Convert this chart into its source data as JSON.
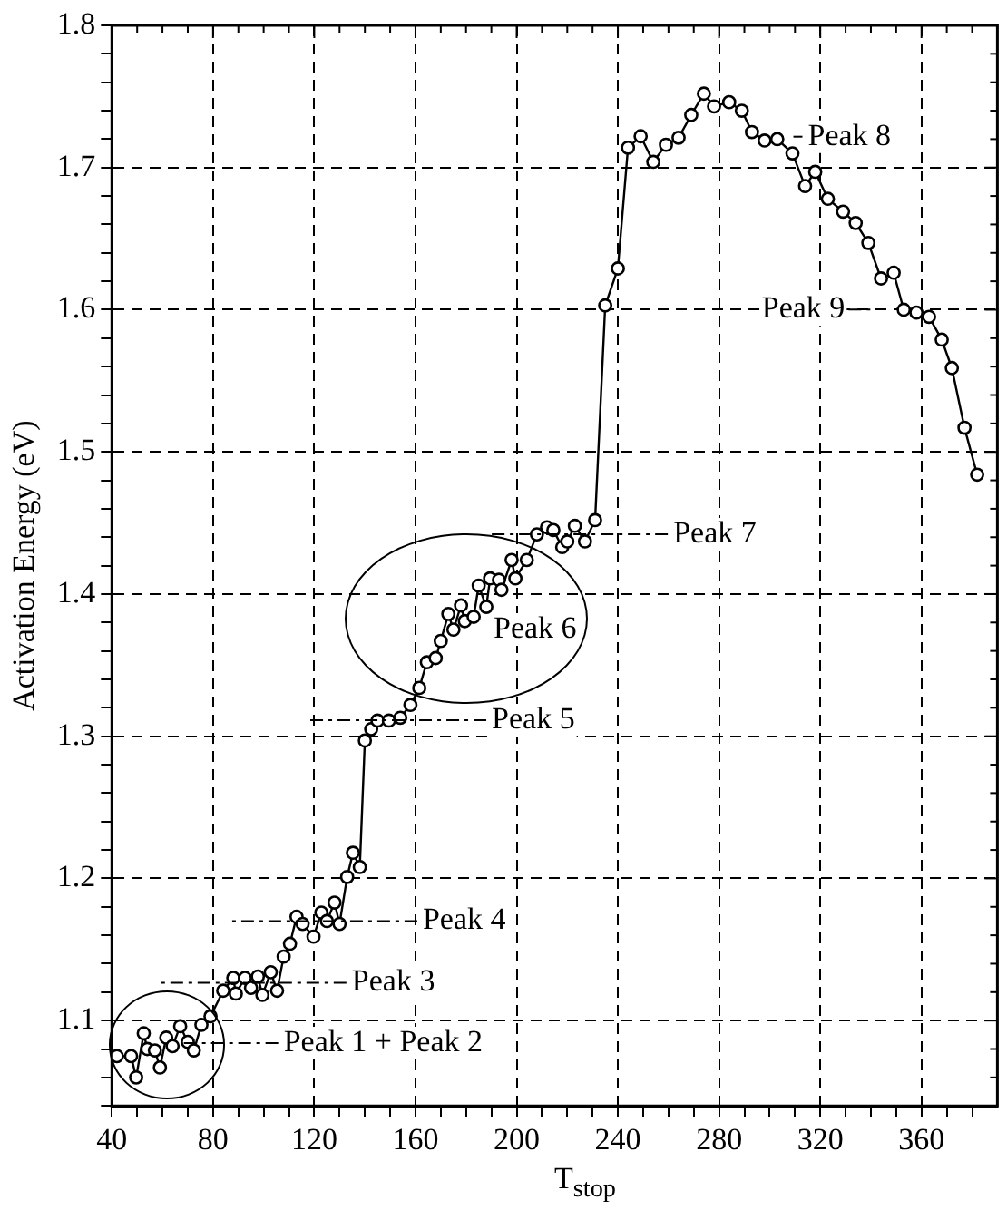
{
  "chart_data": {
    "type": "line",
    "xlabel": "T$_{stop}$",
    "ylabel": "Activation Energy (eV)",
    "color": "#000000",
    "marker": "circle",
    "line_style": "solid",
    "grid": true,
    "legend": false,
    "xlim": [
      40,
      390
    ],
    "ylim": [
      1.04,
      1.8
    ],
    "xticks": [
      40,
      {
        "value": 50,
        "label": null
      },
      {
        "value": 60,
        "label": null
      },
      {
        "value": 70,
        "label": null
      },
      80,
      {
        "value": 90,
        "label": null
      },
      {
        "value": 100,
        "label": null
      },
      {
        "value": 110,
        "label": null
      },
      120,
      {
        "value": 130,
        "label": null
      },
      {
        "value": 140,
        "label": null
      },
      {
        "value": 150,
        "label": null
      },
      160,
      {
        "value": 170,
        "label": null
      },
      {
        "value": 180,
        "label": null
      },
      {
        "value": 190,
        "label": null
      },
      200,
      {
        "value": 210,
        "label": null
      },
      {
        "value": 220,
        "label": null
      },
      {
        "value": 230,
        "label": null
      },
      240,
      {
        "value": 250,
        "label": null
      },
      {
        "value": 260,
        "label": null
      },
      {
        "value": 270,
        "label": null
      },
      280,
      {
        "value": 290,
        "label": null
      },
      {
        "value": 300,
        "label": null
      },
      {
        "value": 310,
        "label": null
      },
      320,
      {
        "value": 330,
        "label": null
      },
      {
        "value": 340,
        "label": null
      },
      {
        "value": 350,
        "label": null
      },
      360,
      {
        "value": 370,
        "label": null
      },
      {
        "value": 380,
        "label": null
      }
    ],
    "yticks": [
      {
        "value": 1.04,
        "label": null
      },
      {
        "value": 1.06,
        "label": null
      },
      {
        "value": 1.08,
        "label": null
      },
      1.1,
      {
        "value": 1.12,
        "label": null
      },
      {
        "value": 1.14,
        "label": null
      },
      {
        "value": 1.16,
        "label": null
      },
      {
        "value": 1.18,
        "label": null
      },
      1.2,
      {
        "value": 1.22,
        "label": null
      },
      {
        "value": 1.24,
        "label": null
      },
      {
        "value": 1.26,
        "label": null
      },
      {
        "value": 1.28,
        "label": null
      },
      1.3,
      {
        "value": 1.32,
        "label": null
      },
      {
        "value": 1.34,
        "label": null
      },
      {
        "value": 1.36,
        "label": null
      },
      {
        "value": 1.38,
        "label": null
      },
      1.4,
      {
        "value": 1.42,
        "label": null
      },
      {
        "value": 1.44,
        "label": null
      },
      {
        "value": 1.46,
        "label": null
      },
      {
        "value": 1.48,
        "label": null
      },
      1.5,
      {
        "value": 1.52,
        "label": null
      },
      {
        "value": 1.54,
        "label": null
      },
      {
        "value": 1.56,
        "label": null
      },
      {
        "value": 1.58,
        "label": null
      },
      1.6,
      {
        "value": 1.62,
        "label": null
      },
      {
        "value": 1.64,
        "label": null
      },
      {
        "value": 1.66,
        "label": null
      },
      {
        "value": 1.68,
        "label": null
      },
      1.7,
      {
        "value": 1.72,
        "label": null
      },
      {
        "value": 1.74,
        "label": null
      },
      {
        "value": 1.76,
        "label": null
      },
      {
        "value": 1.78,
        "label": null
      },
      1.8
    ],
    "x": [
      42,
      47.6,
      49.6,
      52.6,
      54,
      57,
      59,
      61.5,
      64,
      67,
      70,
      72.4,
      75.4,
      79,
      84,
      88,
      89,
      92.6,
      95,
      97.7,
      99.5,
      102.8,
      105.3,
      107.9,
      110.4,
      113,
      115.4,
      119.7,
      122.8,
      125,
      128,
      130,
      133,
      135.3,
      138,
      140,
      142.5,
      145,
      149.5,
      154,
      158,
      161.5,
      164.5,
      168,
      170,
      173,
      175,
      178,
      179.5,
      183,
      185,
      188,
      189.5,
      193,
      194,
      198,
      199.5,
      204,
      208,
      212,
      214.5,
      218,
      220,
      223,
      227,
      231,
      235,
      240,
      244,
      249,
      254,
      259,
      264,
      269,
      274,
      278,
      284,
      289,
      293,
      298,
      303,
      309,
      314,
      318,
      323,
      329,
      334,
      339,
      344,
      349,
      353,
      358,
      363,
      368,
      372,
      377,
      382
    ],
    "values": [
      1.075,
      1.075,
      1.06,
      1.091,
      1.08,
      1.079,
      1.067,
      1.088,
      1.082,
      1.096,
      1.085,
      1.079,
      1.097,
      1.103,
      1.121,
      1.13,
      1.119,
      1.13,
      1.123,
      1.131,
      1.118,
      1.134,
      1.121,
      1.145,
      1.154,
      1.173,
      1.168,
      1.159,
      1.176,
      1.17,
      1.183,
      1.168,
      1.201,
      1.218,
      1.208,
      1.297,
      1.305,
      1.311,
      1.311,
      1.313,
      1.322,
      1.334,
      1.352,
      1.355,
      1.367,
      1.386,
      1.375,
      1.392,
      1.381,
      1.384,
      1.406,
      1.391,
      1.411,
      1.41,
      1.403,
      1.424,
      1.411,
      1.424,
      1.442,
      1.447,
      1.445,
      1.433,
      1.437,
      1.448,
      1.437,
      1.452,
      1.603,
      1.629,
      1.714,
      1.722,
      1.704,
      1.716,
      1.721,
      1.737,
      1.752,
      1.743,
      1.746,
      1.74,
      1.725,
      1.719,
      1.72,
      1.71,
      1.687,
      1.697,
      1.678,
      1.669,
      1.661,
      1.647,
      1.622,
      1.626,
      1.6,
      1.598,
      1.595,
      1.579,
      1.559,
      1.517,
      1.484
    ],
    "annotations": [
      "Peak 1 + Peak 2",
      "Peak 3",
      "Peak 4",
      "Peak 5",
      "Peak 6",
      "Peak 7",
      "Peak 8",
      "Peak 9"
    ]
  }
}
